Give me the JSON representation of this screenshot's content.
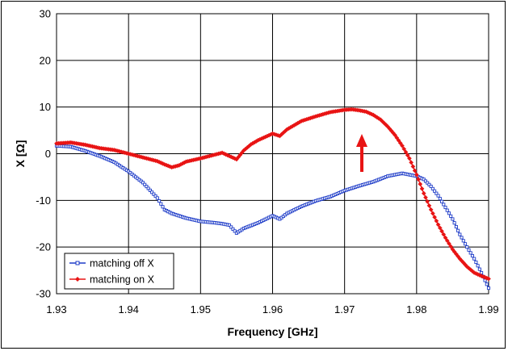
{
  "chart_data": {
    "type": "line",
    "title": "",
    "xlabel": "Frequency [GHz]",
    "ylabel": "X [Ω]",
    "xlim": [
      1.93,
      1.99
    ],
    "ylim": [
      -30,
      30
    ],
    "x_ticks": [
      "1.93",
      "1.94",
      "1.95",
      "1.96",
      "1.97",
      "1.98",
      "1.99"
    ],
    "y_ticks": [
      "30",
      "20",
      "10",
      "0",
      "-10",
      "-20",
      "-30"
    ],
    "grid": true,
    "legend_position": "bottom-left",
    "annotation": "upward-arrow",
    "series": [
      {
        "name": "matching off X",
        "color": "#1e3cc8",
        "marker": "open-square",
        "points": [
          [
            1.93,
            1.7
          ],
          [
            1.932,
            1.5
          ],
          [
            1.934,
            0.6
          ],
          [
            1.936,
            -0.5
          ],
          [
            1.938,
            -1.8
          ],
          [
            1.94,
            -3.8
          ],
          [
            1.942,
            -6.2
          ],
          [
            1.944,
            -9.5
          ],
          [
            1.945,
            -12.0
          ],
          [
            1.946,
            -12.8
          ],
          [
            1.948,
            -13.8
          ],
          [
            1.95,
            -14.5
          ],
          [
            1.952,
            -14.8
          ],
          [
            1.953,
            -15.0
          ],
          [
            1.954,
            -15.3
          ],
          [
            1.955,
            -17.0
          ],
          [
            1.956,
            -16.0
          ],
          [
            1.958,
            -14.8
          ],
          [
            1.96,
            -13.3
          ],
          [
            1.961,
            -14.0
          ],
          [
            1.962,
            -12.8
          ],
          [
            1.964,
            -11.3
          ],
          [
            1.966,
            -10.1
          ],
          [
            1.968,
            -9.2
          ],
          [
            1.97,
            -7.9
          ],
          [
            1.972,
            -6.9
          ],
          [
            1.974,
            -6.0
          ],
          [
            1.976,
            -4.8
          ],
          [
            1.978,
            -4.2
          ],
          [
            1.98,
            -4.8
          ],
          [
            1.981,
            -5.5
          ],
          [
            1.982,
            -7.0
          ],
          [
            1.983,
            -9.0
          ],
          [
            1.984,
            -11.5
          ],
          [
            1.985,
            -14.0
          ],
          [
            1.986,
            -17.3
          ],
          [
            1.987,
            -20.0
          ],
          [
            1.988,
            -22.5
          ],
          [
            1.989,
            -25.5
          ],
          [
            1.99,
            -28.8
          ]
        ]
      },
      {
        "name": "matching on X",
        "color": "#e81414",
        "marker": "filled-diamond",
        "points": [
          [
            1.93,
            2.2
          ],
          [
            1.932,
            2.4
          ],
          [
            1.934,
            1.9
          ],
          [
            1.936,
            1.2
          ],
          [
            1.938,
            0.8
          ],
          [
            1.94,
            0.0
          ],
          [
            1.942,
            -0.8
          ],
          [
            1.944,
            -1.6
          ],
          [
            1.945,
            -2.3
          ],
          [
            1.946,
            -2.9
          ],
          [
            1.947,
            -2.5
          ],
          [
            1.948,
            -1.7
          ],
          [
            1.95,
            -1.0
          ],
          [
            1.952,
            -0.2
          ],
          [
            1.953,
            0.2
          ],
          [
            1.954,
            -0.5
          ],
          [
            1.955,
            -1.2
          ],
          [
            1.956,
            0.7
          ],
          [
            1.957,
            2.0
          ],
          [
            1.958,
            2.9
          ],
          [
            1.959,
            3.6
          ],
          [
            1.96,
            4.3
          ],
          [
            1.961,
            3.8
          ],
          [
            1.962,
            5.2
          ],
          [
            1.964,
            7.0
          ],
          [
            1.966,
            8.0
          ],
          [
            1.968,
            8.9
          ],
          [
            1.97,
            9.4
          ],
          [
            1.971,
            9.5
          ],
          [
            1.972,
            9.3
          ],
          [
            1.973,
            9.0
          ],
          [
            1.974,
            8.3
          ],
          [
            1.975,
            7.3
          ],
          [
            1.976,
            5.8
          ],
          [
            1.977,
            4.0
          ],
          [
            1.978,
            1.7
          ],
          [
            1.979,
            -1.0
          ],
          [
            1.98,
            -4.5
          ],
          [
            1.981,
            -8.5
          ],
          [
            1.982,
            -12.0
          ],
          [
            1.983,
            -15.2
          ],
          [
            1.984,
            -18.0
          ],
          [
            1.985,
            -20.5
          ],
          [
            1.986,
            -22.5
          ],
          [
            1.987,
            -24.2
          ],
          [
            1.988,
            -25.5
          ],
          [
            1.989,
            -26.2
          ],
          [
            1.99,
            -26.8
          ]
        ]
      }
    ]
  }
}
